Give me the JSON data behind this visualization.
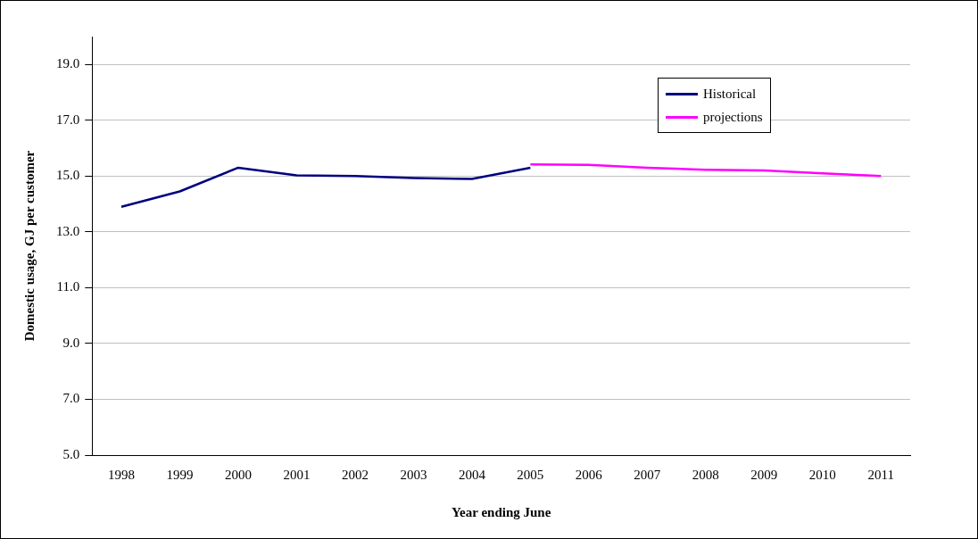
{
  "chart_data": {
    "type": "line",
    "categories": [
      "1998",
      "1999",
      "2000",
      "2001",
      "2002",
      "2003",
      "2004",
      "2005",
      "2006",
      "2007",
      "2008",
      "2009",
      "2010",
      "2011"
    ],
    "series": [
      {
        "name": "Historical",
        "color": "#000080",
        "values": [
          13.9,
          14.45,
          15.3,
          15.03,
          15.0,
          14.93,
          14.9,
          15.3,
          null,
          null,
          null,
          null,
          null,
          null
        ]
      },
      {
        "name": "projections",
        "color": "#ff00ff",
        "values": [
          null,
          null,
          null,
          null,
          null,
          null,
          null,
          15.42,
          15.4,
          15.3,
          15.23,
          15.2,
          15.1,
          15.0
        ]
      }
    ],
    "xlabel": "Year ending June",
    "ylabel": "Domestic usage, GJ per customer",
    "ylim": [
      5,
      20
    ],
    "yticks": [
      {
        "value": 5,
        "label": "5.0"
      },
      {
        "value": 7,
        "label": "7.0"
      },
      {
        "value": 9,
        "label": "9.0"
      },
      {
        "value": 11,
        "label": "11.0"
      },
      {
        "value": 13,
        "label": "13.0"
      },
      {
        "value": 15,
        "label": "15.0"
      },
      {
        "value": 17,
        "label": "17.0"
      },
      {
        "value": 19,
        "label": "19.0"
      }
    ],
    "grid": "y",
    "legend": "top right",
    "marker": "none",
    "line_style": "solid"
  }
}
